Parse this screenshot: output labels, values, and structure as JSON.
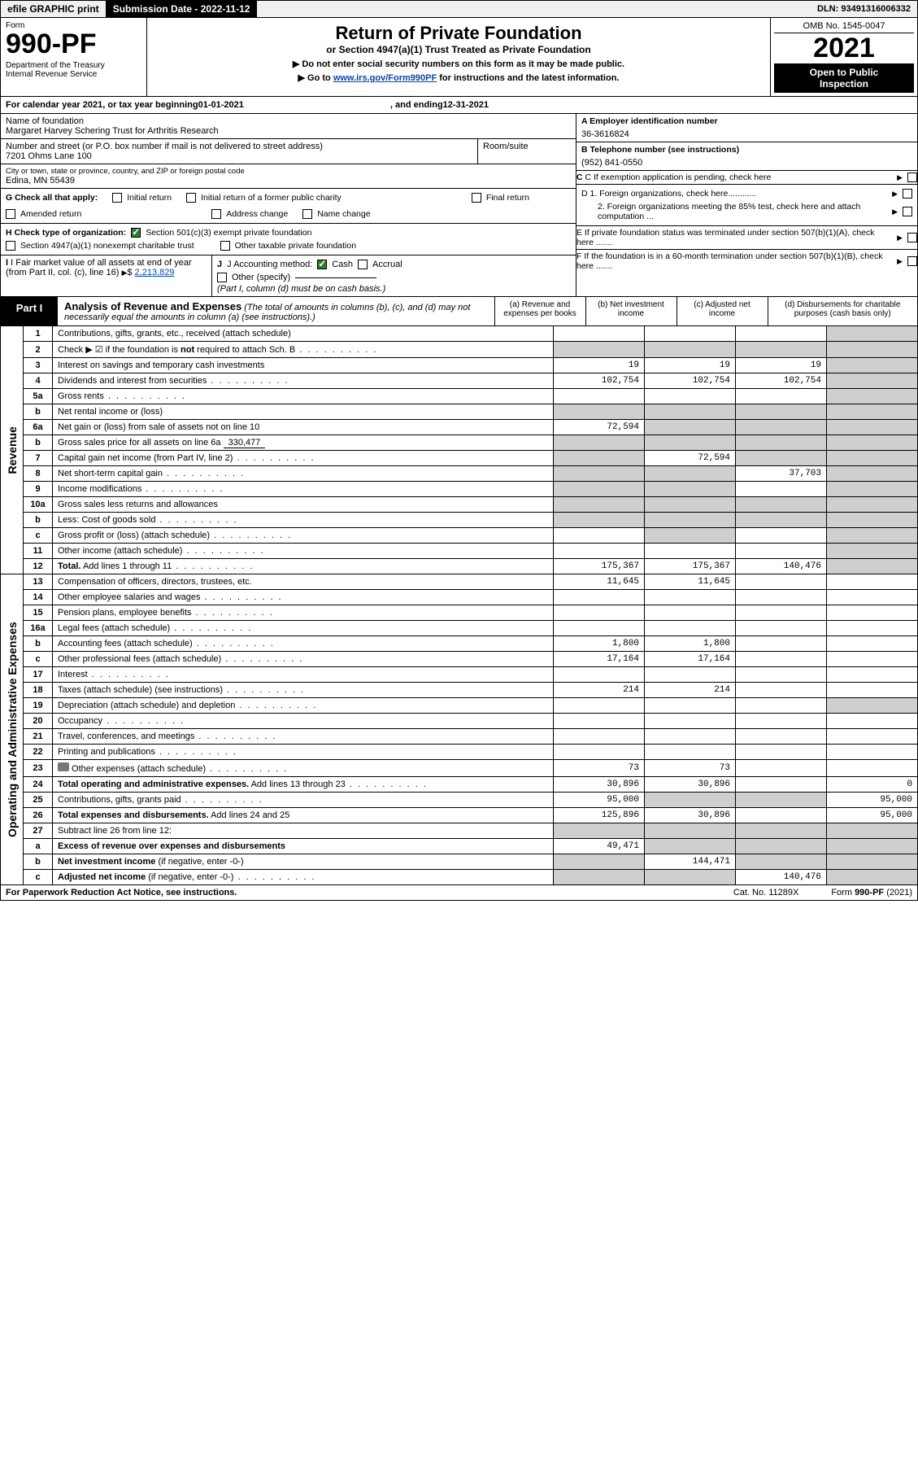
{
  "top": {
    "efile": "efile GRAPHIC print",
    "submission_label": "Submission Date",
    "submission_date": "2022-11-12",
    "dln_label": "DLN:",
    "dln": "93491316006332"
  },
  "header": {
    "form_label": "Form",
    "form_no": "990-PF",
    "dept1": "Department of the Treasury",
    "dept2": "Internal Revenue Service",
    "title": "Return of Private Foundation",
    "subtitle": "or Section 4947(a)(1) Trust Treated as Private Foundation",
    "note1": "▶ Do not enter social security numbers on this form as it may be made public.",
    "note2_pre": "▶ Go to ",
    "note2_link": "www.irs.gov/Form990PF",
    "note2_post": " for instructions and the latest information.",
    "omb": "OMB No. 1545-0047",
    "year": "2021",
    "open1": "Open to Public",
    "open2": "Inspection"
  },
  "cal": {
    "prefix": "For calendar year 2021, or tax year beginning ",
    "begin": "01-01-2021",
    "mid": " , and ending ",
    "end": "12-31-2021"
  },
  "ident": {
    "name_label": "Name of foundation",
    "name": "Margaret Harvey Schering Trust for Arthritis Research",
    "addr_label": "Number and street (or P.O. box number if mail is not delivered to street address)",
    "addr": "7201 Ohms Lane 100",
    "room_label": "Room/suite",
    "room": "",
    "city_label": "City or town, state or province, country, and ZIP or foreign postal code",
    "city": "Edina, MN  55439",
    "a_label": "A Employer identification number",
    "a_val": "36-3616824",
    "b_label": "B Telephone number (see instructions)",
    "b_val": "(952) 841-0550",
    "c_label": "C If exemption application is pending, check here",
    "d1": "D 1. Foreign organizations, check here............",
    "d2": "2. Foreign organizations meeting the 85% test, check here and attach computation ...",
    "e": "E  If private foundation status was terminated under section 507(b)(1)(A), check here .......",
    "f": "F  If the foundation is in a 60-month termination under section 507(b)(1)(B), check here .......",
    "g_label": "G Check all that apply:",
    "g_opts": [
      "Initial return",
      "Initial return of a former public charity",
      "Final return",
      "Amended return",
      "Address change",
      "Name change"
    ],
    "h_label": "H Check type of organization:",
    "h_opt1": "Section 501(c)(3) exempt private foundation",
    "h_opt2": "Section 4947(a)(1) nonexempt charitable trust",
    "h_opt3": "Other taxable private foundation",
    "i_label": "I Fair market value of all assets at end of year (from Part II, col. (c), line 16)",
    "i_val": "2,213,829",
    "j_label": "J Accounting method:",
    "j_cash": "Cash",
    "j_accrual": "Accrual",
    "j_other": "Other (specify)",
    "j_note": "(Part I, column (d) must be on cash basis.)"
  },
  "part1": {
    "tab": "Part I",
    "title": "Analysis of Revenue and Expenses",
    "note": " (The total of amounts in columns (b), (c), and (d) may not necessarily equal the amounts in column (a) (see instructions).)",
    "col_a": "(a)   Revenue and expenses per books",
    "col_b": "(b)   Net investment income",
    "col_c": "(c)   Adjusted net income",
    "col_d": "(d)   Disbursements for charitable purposes (cash basis only)"
  },
  "sections": {
    "revenue": "Revenue",
    "opex": "Operating and Administrative Expenses"
  },
  "rows": [
    {
      "ln": "1",
      "desc": "Contributions, gifts, grants, etc., received (attach schedule)",
      "a": "",
      "b": "",
      "c": "",
      "d_shade": true
    },
    {
      "ln": "2",
      "desc": "Check ▶ ☑ if the foundation is <b>not</b> required to attach Sch. B",
      "dots": true,
      "a_shade": true,
      "b_shade": true,
      "c_shade": true,
      "d_shade": true
    },
    {
      "ln": "3",
      "desc": "Interest on savings and temporary cash investments",
      "a": "19",
      "b": "19",
      "c": "19",
      "d_shade": true
    },
    {
      "ln": "4",
      "desc": "Dividends and interest from securities",
      "dots": true,
      "a": "102,754",
      "b": "102,754",
      "c": "102,754",
      "d_shade": true
    },
    {
      "ln": "5a",
      "desc": "Gross rents",
      "dots": true,
      "a": "",
      "b": "",
      "c": "",
      "d_shade": true
    },
    {
      "ln": "b",
      "desc": "Net rental income or (loss)",
      "underline_after": true,
      "a_shade": true,
      "b_shade": true,
      "c_shade": true,
      "d_shade": true
    },
    {
      "ln": "6a",
      "desc": "Net gain or (loss) from sale of assets not on line 10",
      "a": "72,594",
      "b_shade": true,
      "c_shade": true,
      "d_shade": true
    },
    {
      "ln": "b",
      "desc": "Gross sales price for all assets on line 6a",
      "inline_val": "330,477",
      "a_shade": true,
      "b_shade": true,
      "c_shade": true,
      "d_shade": true
    },
    {
      "ln": "7",
      "desc": "Capital gain net income (from Part IV, line 2)",
      "dots": true,
      "a_shade": true,
      "b": "72,594",
      "c_shade": true,
      "d_shade": true
    },
    {
      "ln": "8",
      "desc": "Net short-term capital gain",
      "dots": true,
      "a_shade": true,
      "b_shade": true,
      "c": "37,703",
      "d_shade": true
    },
    {
      "ln": "9",
      "desc": "Income modifications",
      "dots": true,
      "a_shade": true,
      "b_shade": true,
      "c": "",
      "d_shade": true
    },
    {
      "ln": "10a",
      "desc": "Gross sales less returns and allowances",
      "underline_after": true,
      "a_shade": true,
      "b_shade": true,
      "c_shade": true,
      "d_shade": true
    },
    {
      "ln": "b",
      "desc": "Less: Cost of goods sold",
      "dots": true,
      "underline_after": true,
      "a_shade": true,
      "b_shade": true,
      "c_shade": true,
      "d_shade": true
    },
    {
      "ln": "c",
      "desc": "Gross profit or (loss) (attach schedule)",
      "dots": true,
      "a": "",
      "b_shade": true,
      "c": "",
      "d_shade": true
    },
    {
      "ln": "11",
      "desc": "Other income (attach schedule)",
      "dots": true,
      "a": "",
      "b": "",
      "c": "",
      "d_shade": true
    },
    {
      "ln": "12",
      "desc": "<b>Total.</b> Add lines 1 through 11",
      "dots": true,
      "a": "175,367",
      "b": "175,367",
      "c": "140,476",
      "d_shade": true,
      "bold": true
    }
  ],
  "exp_rows": [
    {
      "ln": "13",
      "desc": "Compensation of officers, directors, trustees, etc.",
      "a": "11,645",
      "b": "11,645",
      "c": "",
      "d": ""
    },
    {
      "ln": "14",
      "desc": "Other employee salaries and wages",
      "dots": true,
      "a": "",
      "b": "",
      "c": "",
      "d": ""
    },
    {
      "ln": "15",
      "desc": "Pension plans, employee benefits",
      "dots": true,
      "a": "",
      "b": "",
      "c": "",
      "d": ""
    },
    {
      "ln": "16a",
      "desc": "Legal fees (attach schedule)",
      "dots": true,
      "a": "",
      "b": "",
      "c": "",
      "d": ""
    },
    {
      "ln": "b",
      "desc": "Accounting fees (attach schedule)",
      "dots": true,
      "a": "1,800",
      "b": "1,800",
      "c": "",
      "d": ""
    },
    {
      "ln": "c",
      "desc": "Other professional fees (attach schedule)",
      "dots": true,
      "a": "17,164",
      "b": "17,164",
      "c": "",
      "d": ""
    },
    {
      "ln": "17",
      "desc": "Interest",
      "dots": true,
      "a": "",
      "b": "",
      "c": "",
      "d": ""
    },
    {
      "ln": "18",
      "desc": "Taxes (attach schedule) (see instructions)",
      "dots": true,
      "a": "214",
      "b": "214",
      "c": "",
      "d": ""
    },
    {
      "ln": "19",
      "desc": "Depreciation (attach schedule) and depletion",
      "dots": true,
      "a": "",
      "b": "",
      "c": "",
      "d_shade": true
    },
    {
      "ln": "20",
      "desc": "Occupancy",
      "dots": true,
      "a": "",
      "b": "",
      "c": "",
      "d": ""
    },
    {
      "ln": "21",
      "desc": "Travel, conferences, and meetings",
      "dots": true,
      "a": "",
      "b": "",
      "c": "",
      "d": ""
    },
    {
      "ln": "22",
      "desc": "Printing and publications",
      "dots": true,
      "a": "",
      "b": "",
      "c": "",
      "d": ""
    },
    {
      "ln": "23",
      "desc": "Other expenses (attach schedule)",
      "dots": true,
      "attach_icon": true,
      "a": "73",
      "b": "73",
      "c": "",
      "d": ""
    },
    {
      "ln": "24",
      "desc": "<b>Total operating and administrative expenses.</b> Add lines 13 through 23",
      "dots": true,
      "a": "30,896",
      "b": "30,896",
      "c": "",
      "d": "0"
    },
    {
      "ln": "25",
      "desc": "Contributions, gifts, grants paid",
      "dots": true,
      "a": "95,000",
      "b_shade": true,
      "c_shade": true,
      "d": "95,000"
    },
    {
      "ln": "26",
      "desc": "<b>Total expenses and disbursements.</b> Add lines 24 and 25",
      "a": "125,896",
      "b": "30,896",
      "c": "",
      "d": "95,000"
    },
    {
      "ln": "27",
      "desc": "Subtract line 26 from line 12:",
      "a_shade": true,
      "b_shade": true,
      "c_shade": true,
      "d_shade": true
    },
    {
      "ln": "a",
      "desc": "<b>Excess of revenue over expenses and disbursements</b>",
      "a": "49,471",
      "b_shade": true,
      "c_shade": true,
      "d_shade": true
    },
    {
      "ln": "b",
      "desc": "<b>Net investment income</b> (if negative, enter -0-)",
      "a_shade": true,
      "b": "144,471",
      "c_shade": true,
      "d_shade": true
    },
    {
      "ln": "c",
      "desc": "<b>Adjusted net income</b> (if negative, enter -0-)",
      "dots": true,
      "a_shade": true,
      "b_shade": true,
      "c": "140,476",
      "d_shade": true
    }
  ],
  "footer": {
    "left": "For Paperwork Reduction Act Notice, see instructions.",
    "mid": "Cat. No. 11289X",
    "right": "Form 990-PF (2021)"
  },
  "colors": {
    "link": "#0645ad",
    "shade": "#cfcfcf",
    "check_fill": "#2e7d32"
  }
}
